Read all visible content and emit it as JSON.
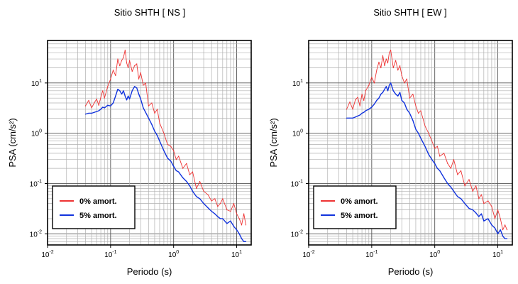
{
  "chart_data": [
    {
      "type": "line",
      "title": "Sitio SHTH [ NS ]",
      "xlabel": "Periodo (s)",
      "ylabel": "PSA (cm/s²)",
      "xscale": "log",
      "yscale": "log",
      "xlim": [
        0.01,
        17
      ],
      "ylim": [
        0.006,
        70
      ],
      "grid": true,
      "legend_position": "bottom-left",
      "x_ticks": [
        {
          "base": "10",
          "exp": "-2"
        },
        {
          "base": "10",
          "exp": "-1"
        },
        {
          "base": "10",
          "exp": "0"
        },
        {
          "base": "10",
          "exp": "1"
        }
      ],
      "y_ticks": [
        {
          "base": "10",
          "exp": "-2"
        },
        {
          "base": "10",
          "exp": "-1"
        },
        {
          "base": "10",
          "exp": "0"
        },
        {
          "base": "10",
          "exp": "1"
        }
      ],
      "series": [
        {
          "name": "0% amort.",
          "color": "#ee3333",
          "x": [
            0.04,
            0.045,
            0.05,
            0.055,
            0.06,
            0.065,
            0.07,
            0.075,
            0.08,
            0.09,
            0.1,
            0.11,
            0.12,
            0.13,
            0.14,
            0.15,
            0.16,
            0.17,
            0.18,
            0.19,
            0.2,
            0.22,
            0.24,
            0.26,
            0.28,
            0.3,
            0.33,
            0.36,
            0.4,
            0.45,
            0.5,
            0.55,
            0.6,
            0.7,
            0.8,
            0.9,
            1.0,
            1.1,
            1.2,
            1.4,
            1.6,
            1.8,
            2.0,
            2.3,
            2.6,
            3.0,
            3.5,
            4.0,
            4.5,
            5.0,
            5.5,
            6.0,
            7.0,
            8.0,
            9.0,
            10.0,
            11.0,
            12.0,
            13.0,
            14.0
          ],
          "y": [
            3.5,
            4.5,
            3.2,
            4.0,
            4.8,
            3.6,
            5.2,
            7.0,
            5.0,
            8.5,
            12.0,
            18.0,
            14.0,
            30.0,
            22.0,
            28.0,
            32.0,
            45.0,
            25.0,
            20.0,
            28.0,
            17.0,
            22.0,
            24.0,
            12.0,
            16.0,
            9.0,
            10.0,
            3.5,
            4.0,
            2.5,
            3.0,
            1.6,
            1.0,
            0.6,
            0.55,
            0.45,
            0.3,
            0.35,
            0.2,
            0.25,
            0.15,
            0.17,
            0.08,
            0.11,
            0.07,
            0.06,
            0.045,
            0.05,
            0.035,
            0.04,
            0.05,
            0.03,
            0.028,
            0.04,
            0.025,
            0.02,
            0.015,
            0.025,
            0.015
          ]
        },
        {
          "name": "5% amort.",
          "color": "#1133dd",
          "x": [
            0.04,
            0.045,
            0.05,
            0.055,
            0.06,
            0.065,
            0.07,
            0.075,
            0.08,
            0.09,
            0.1,
            0.11,
            0.12,
            0.13,
            0.14,
            0.15,
            0.16,
            0.17,
            0.18,
            0.19,
            0.2,
            0.22,
            0.24,
            0.26,
            0.28,
            0.3,
            0.33,
            0.36,
            0.4,
            0.45,
            0.5,
            0.55,
            0.6,
            0.7,
            0.8,
            0.9,
            1.0,
            1.1,
            1.2,
            1.4,
            1.6,
            1.8,
            2.0,
            2.3,
            2.6,
            3.0,
            3.5,
            4.0,
            4.5,
            5.0,
            5.5,
            6.0,
            7.0,
            8.0,
            9.0,
            10.0,
            11.0,
            12.0,
            13.0,
            14.0
          ],
          "y": [
            2.4,
            2.5,
            2.5,
            2.6,
            2.7,
            2.8,
            3.0,
            3.3,
            3.2,
            3.6,
            3.5,
            4.0,
            5.5,
            7.5,
            7.0,
            6.0,
            7.0,
            5.5,
            4.6,
            5.5,
            4.8,
            7.0,
            8.5,
            8.0,
            6.0,
            4.8,
            3.2,
            2.6,
            2.0,
            1.5,
            1.1,
            0.9,
            0.7,
            0.45,
            0.32,
            0.28,
            0.22,
            0.18,
            0.17,
            0.13,
            0.11,
            0.09,
            0.07,
            0.055,
            0.05,
            0.04,
            0.033,
            0.028,
            0.025,
            0.022,
            0.02,
            0.02,
            0.016,
            0.018,
            0.014,
            0.012,
            0.01,
            0.008,
            0.007,
            0.007
          ]
        }
      ]
    },
    {
      "type": "line",
      "title": "Sitio SHTH [ EW ]",
      "xlabel": "Periodo (s)",
      "ylabel": "PSA (cm/s²)",
      "xscale": "log",
      "yscale": "log",
      "xlim": [
        0.01,
        17
      ],
      "ylim": [
        0.006,
        70
      ],
      "grid": true,
      "legend_position": "bottom-left",
      "x_ticks": [
        {
          "base": "10",
          "exp": "-2"
        },
        {
          "base": "10",
          "exp": "-1"
        },
        {
          "base": "10",
          "exp": "0"
        },
        {
          "base": "10",
          "exp": "1"
        }
      ],
      "y_ticks": [
        {
          "base": "10",
          "exp": "-2"
        },
        {
          "base": "10",
          "exp": "-1"
        },
        {
          "base": "10",
          "exp": "0"
        },
        {
          "base": "10",
          "exp": "1"
        }
      ],
      "series": [
        {
          "name": "0% amort.",
          "color": "#ee3333",
          "x": [
            0.04,
            0.045,
            0.05,
            0.055,
            0.06,
            0.065,
            0.07,
            0.075,
            0.08,
            0.09,
            0.1,
            0.11,
            0.12,
            0.13,
            0.14,
            0.15,
            0.16,
            0.17,
            0.18,
            0.19,
            0.2,
            0.22,
            0.24,
            0.26,
            0.28,
            0.3,
            0.33,
            0.36,
            0.4,
            0.45,
            0.5,
            0.55,
            0.6,
            0.7,
            0.8,
            0.9,
            1.0,
            1.1,
            1.2,
            1.4,
            1.6,
            1.8,
            2.0,
            2.3,
            2.6,
            3.0,
            3.5,
            4.0,
            4.5,
            5.0,
            5.5,
            6.0,
            7.0,
            8.0,
            9.0,
            10.0,
            11.0,
            12.0,
            13.0,
            14.0
          ],
          "y": [
            3.0,
            4.2,
            3.0,
            4.6,
            5.2,
            3.5,
            6.0,
            4.5,
            7.0,
            9.0,
            13.0,
            10.0,
            18.0,
            26.0,
            20.0,
            35.0,
            22.0,
            30.0,
            25.0,
            40.0,
            45.0,
            20.0,
            28.0,
            18.0,
            22.0,
            14.0,
            10.0,
            12.0,
            5.0,
            6.0,
            3.5,
            2.5,
            2.8,
            1.4,
            1.0,
            0.7,
            0.5,
            0.55,
            0.35,
            0.4,
            0.25,
            0.2,
            0.3,
            0.15,
            0.18,
            0.09,
            0.12,
            0.07,
            0.09,
            0.05,
            0.06,
            0.04,
            0.045,
            0.035,
            0.02,
            0.03,
            0.02,
            0.012,
            0.015,
            0.012
          ]
        },
        {
          "name": "5% amort.",
          "color": "#1133dd",
          "x": [
            0.04,
            0.045,
            0.05,
            0.055,
            0.06,
            0.065,
            0.07,
            0.075,
            0.08,
            0.09,
            0.1,
            0.11,
            0.12,
            0.13,
            0.14,
            0.15,
            0.16,
            0.17,
            0.18,
            0.19,
            0.2,
            0.22,
            0.24,
            0.26,
            0.28,
            0.3,
            0.33,
            0.36,
            0.4,
            0.45,
            0.5,
            0.55,
            0.6,
            0.7,
            0.8,
            0.9,
            1.0,
            1.1,
            1.2,
            1.4,
            1.6,
            1.8,
            2.0,
            2.3,
            2.6,
            3.0,
            3.5,
            4.0,
            4.5,
            5.0,
            5.5,
            6.0,
            7.0,
            8.0,
            9.0,
            10.0,
            11.0,
            12.0,
            13.0,
            14.0
          ],
          "y": [
            2.0,
            2.0,
            2.0,
            2.1,
            2.2,
            2.3,
            2.5,
            2.6,
            2.8,
            3.0,
            3.3,
            3.8,
            4.5,
            5.0,
            6.0,
            6.5,
            7.5,
            8.5,
            7.0,
            9.0,
            10.0,
            7.0,
            6.0,
            5.5,
            6.5,
            4.5,
            4.0,
            3.0,
            2.5,
            1.8,
            1.2,
            1.0,
            0.8,
            0.55,
            0.38,
            0.3,
            0.25,
            0.2,
            0.18,
            0.13,
            0.1,
            0.085,
            0.07,
            0.055,
            0.05,
            0.04,
            0.032,
            0.03,
            0.026,
            0.022,
            0.025,
            0.018,
            0.02,
            0.015,
            0.013,
            0.01,
            0.012,
            0.009,
            0.008,
            0.008
          ]
        }
      ]
    }
  ]
}
